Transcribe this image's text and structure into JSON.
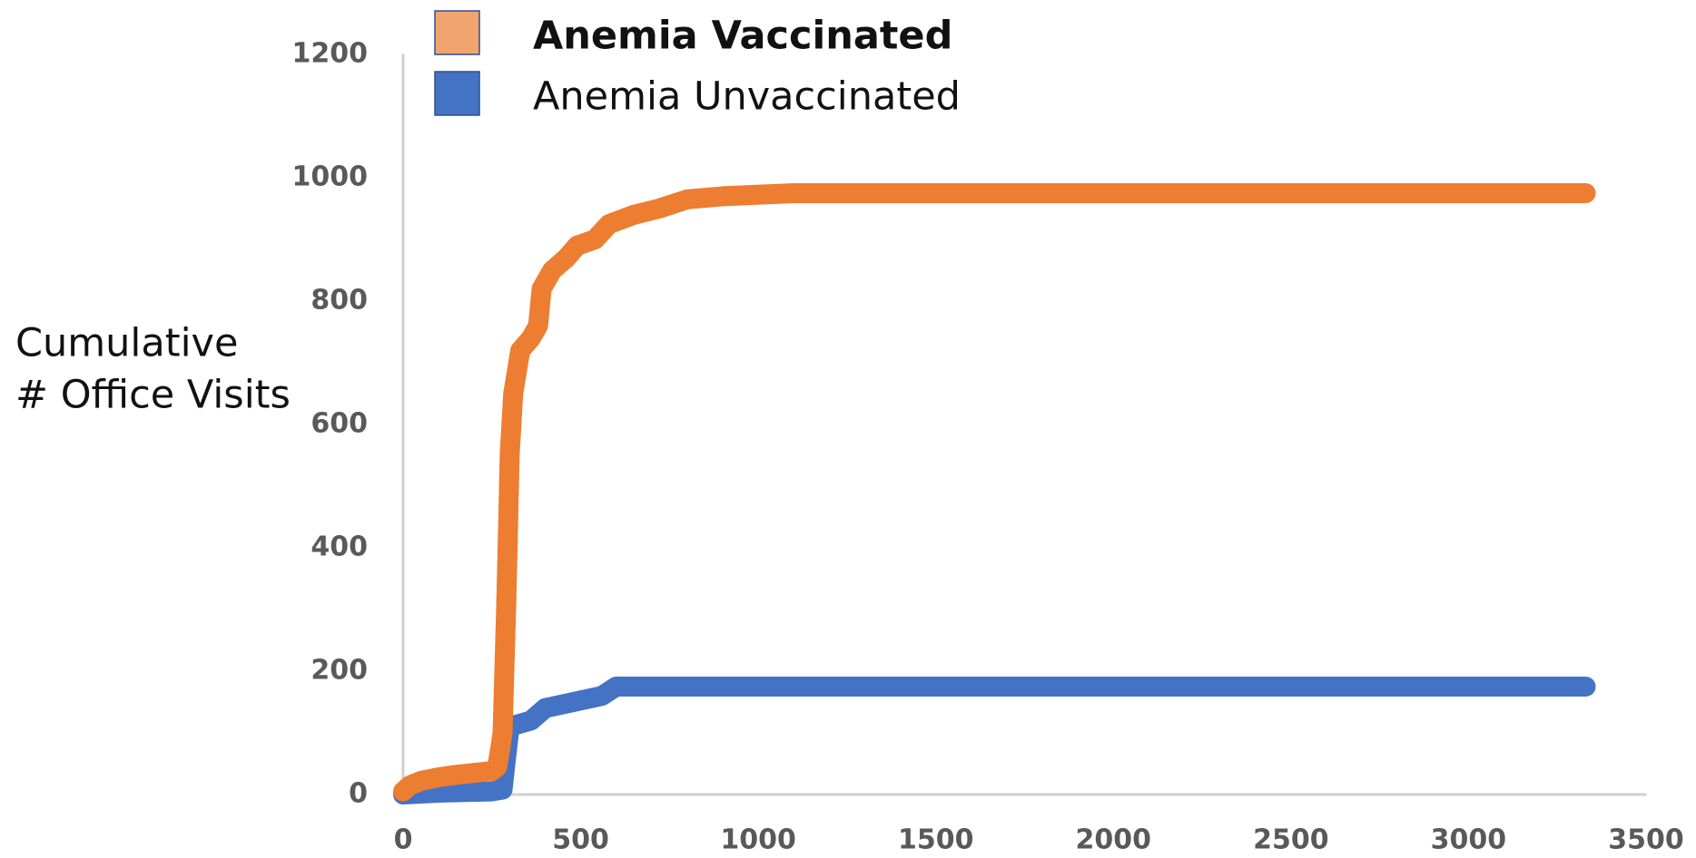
{
  "chart_data": {
    "type": "line",
    "ylabel": [
      "Cumulative",
      "# Office Visits"
    ],
    "xlim": [
      0,
      3500
    ],
    "xticks": [
      0,
      500,
      1000,
      1500,
      2000,
      2500,
      3000,
      3500
    ],
    "ylim": [
      0,
      1200
    ],
    "yticks": [
      0,
      200,
      400,
      600,
      800,
      1000,
      1200
    ],
    "legend": "top",
    "series": [
      {
        "name": "Anemia Vaccinated",
        "color": "#ed7d31",
        "x": [
          0,
          20,
          50,
          100,
          150,
          200,
          250,
          265,
          275,
          280,
          285,
          290,
          295,
          300,
          310,
          330,
          360,
          380,
          390,
          420,
          460,
          490,
          540,
          580,
          650,
          720,
          800,
          900,
          1100,
          3330
        ],
        "values": [
          5,
          15,
          22,
          28,
          32,
          35,
          38,
          45,
          80,
          100,
          200,
          300,
          420,
          550,
          650,
          720,
          740,
          760,
          820,
          850,
          870,
          890,
          900,
          925,
          940,
          950,
          965,
          970,
          975,
          975
        ]
      },
      {
        "name": "Anemia Unvaccinated",
        "color": "#4472c4",
        "x": [
          0,
          100,
          250,
          280,
          290,
          300,
          360,
          400,
          480,
          560,
          600,
          3330
        ],
        "values": [
          0,
          3,
          5,
          8,
          60,
          110,
          120,
          140,
          150,
          160,
          175,
          175
        ]
      }
    ]
  }
}
